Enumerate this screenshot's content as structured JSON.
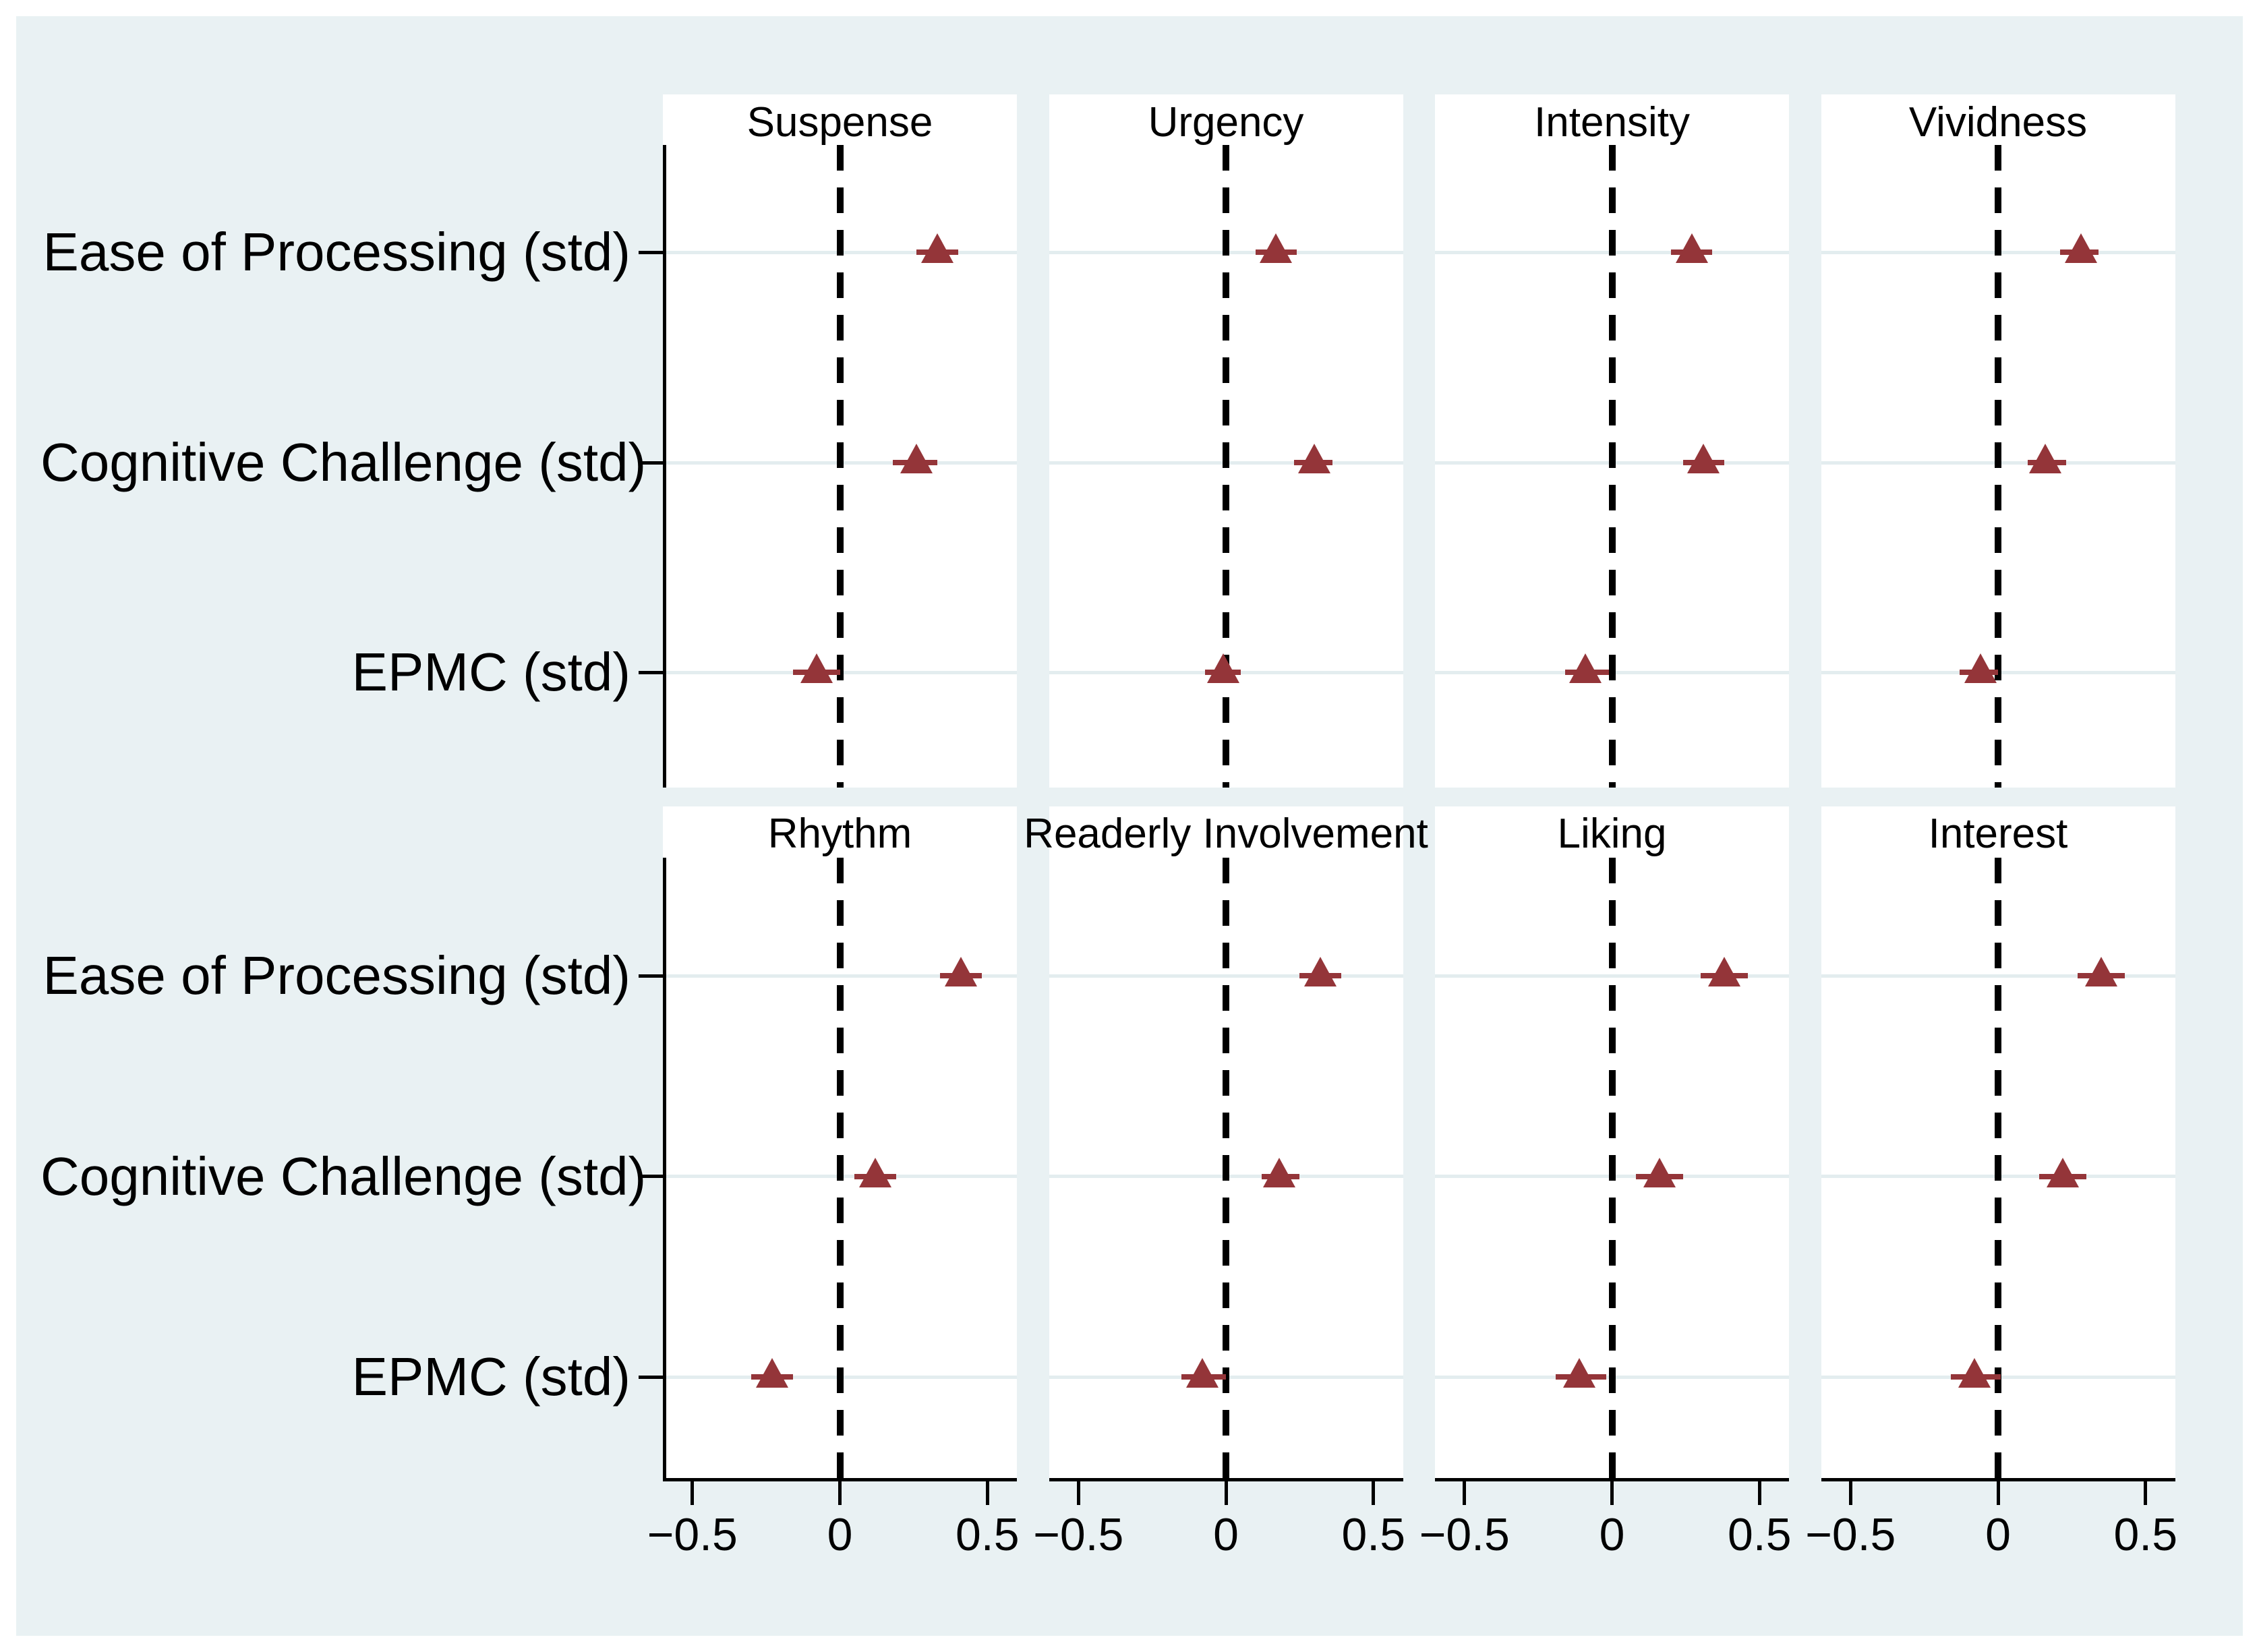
{
  "figure": {
    "background_color": "#e9f1f3",
    "panel_color": "#ffffff",
    "marker_color": "#943539",
    "gridline_color": "#e3edef",
    "axis_color": "#000000",
    "text_color": "#000000"
  },
  "chart_data": {
    "type": "scatter",
    "subtype": "coefficient-forest-plot-small-multiples",
    "grid_layout": "2 rows x 4 columns of panels",
    "rows": [
      "Ease of Processing (std)",
      "Cognitive Challenge (std)",
      "EPMC (std)"
    ],
    "x_ticks": [
      -0.5,
      0,
      0.5
    ],
    "x_tick_labels": [
      "−0.5",
      "0",
      "0.5"
    ],
    "xlim": [
      -0.6,
      0.6
    ],
    "zero_line": {
      "x": 0,
      "style": "dashed",
      "color": "#000000"
    },
    "marker_style": "filled triangle with horizontal confidence-interval line",
    "legend": "none",
    "grid": "horizontal gridline at each row category",
    "panels": [
      {
        "title": "Suspense",
        "estimates": [
          {
            "predictor": "Ease of Processing (std)",
            "b": 0.33,
            "ci_low": 0.26,
            "ci_high": 0.4
          },
          {
            "predictor": "Cognitive Challenge (std)",
            "b": 0.26,
            "ci_low": 0.18,
            "ci_high": 0.33
          },
          {
            "predictor": "EPMC (std)",
            "b": -0.08,
            "ci_low": -0.16,
            "ci_high": 0.0
          }
        ]
      },
      {
        "title": "Urgency",
        "estimates": [
          {
            "predictor": "Ease of Processing (std)",
            "b": 0.17,
            "ci_low": 0.1,
            "ci_high": 0.24
          },
          {
            "predictor": "Cognitive Challenge (std)",
            "b": 0.3,
            "ci_low": 0.23,
            "ci_high": 0.36
          },
          {
            "predictor": "EPMC (std)",
            "b": -0.01,
            "ci_low": -0.07,
            "ci_high": 0.05
          }
        ]
      },
      {
        "title": "Intensity",
        "estimates": [
          {
            "predictor": "Ease of Processing (std)",
            "b": 0.27,
            "ci_low": 0.2,
            "ci_high": 0.34
          },
          {
            "predictor": "Cognitive Challenge (std)",
            "b": 0.31,
            "ci_low": 0.24,
            "ci_high": 0.38
          },
          {
            "predictor": "EPMC (std)",
            "b": -0.09,
            "ci_low": -0.16,
            "ci_high": -0.01
          }
        ]
      },
      {
        "title": "Vividness",
        "estimates": [
          {
            "predictor": "Ease of Processing (std)",
            "b": 0.28,
            "ci_low": 0.21,
            "ci_high": 0.34
          },
          {
            "predictor": "Cognitive Challenge (std)",
            "b": 0.16,
            "ci_low": 0.1,
            "ci_high": 0.23
          },
          {
            "predictor": "EPMC (std)",
            "b": -0.06,
            "ci_low": -0.13,
            "ci_high": 0.0
          }
        ]
      },
      {
        "title": "Rhythm",
        "estimates": [
          {
            "predictor": "Ease of Processing (std)",
            "b": 0.41,
            "ci_low": 0.34,
            "ci_high": 0.48
          },
          {
            "predictor": "Cognitive Challenge (std)",
            "b": 0.12,
            "ci_low": 0.05,
            "ci_high": 0.19
          },
          {
            "predictor": "EPMC (std)",
            "b": -0.23,
            "ci_low": -0.3,
            "ci_high": -0.16
          }
        ]
      },
      {
        "title": "Readerly Involvement",
        "estimates": [
          {
            "predictor": "Ease of Processing (std)",
            "b": 0.32,
            "ci_low": 0.25,
            "ci_high": 0.39
          },
          {
            "predictor": "Cognitive Challenge (std)",
            "b": 0.18,
            "ci_low": 0.12,
            "ci_high": 0.25
          },
          {
            "predictor": "EPMC (std)",
            "b": -0.08,
            "ci_low": -0.15,
            "ci_high": 0.0
          }
        ]
      },
      {
        "title": "Liking",
        "estimates": [
          {
            "predictor": "Ease of Processing (std)",
            "b": 0.38,
            "ci_low": 0.3,
            "ci_high": 0.46
          },
          {
            "predictor": "Cognitive Challenge (std)",
            "b": 0.16,
            "ci_low": 0.08,
            "ci_high": 0.24
          },
          {
            "predictor": "EPMC (std)",
            "b": -0.11,
            "ci_low": -0.19,
            "ci_high": -0.02
          }
        ]
      },
      {
        "title": "Interest",
        "estimates": [
          {
            "predictor": "Ease of Processing (std)",
            "b": 0.35,
            "ci_low": 0.27,
            "ci_high": 0.43
          },
          {
            "predictor": "Cognitive Challenge (std)",
            "b": 0.22,
            "ci_low": 0.14,
            "ci_high": 0.3
          },
          {
            "predictor": "EPMC (std)",
            "b": -0.08,
            "ci_low": -0.16,
            "ci_high": 0.01
          }
        ]
      }
    ]
  }
}
